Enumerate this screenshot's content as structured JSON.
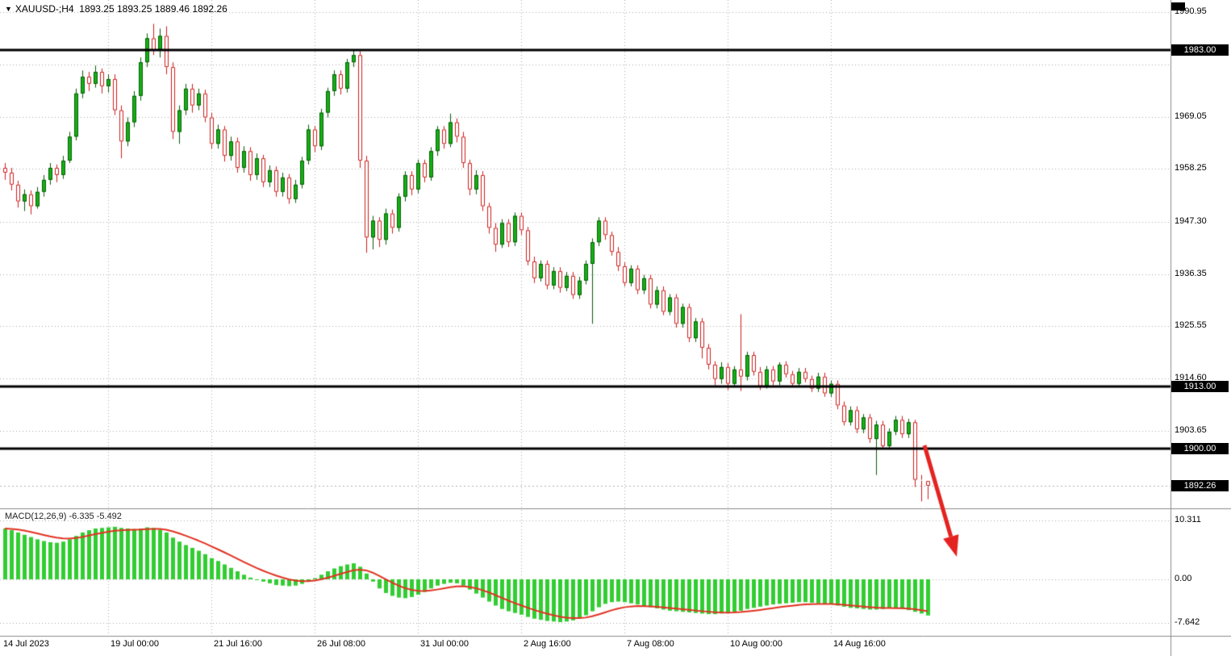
{
  "header": {
    "collapse_icon": "▼",
    "symbol_period": "XAUUSD-;H4",
    "ohlc_text": "1893.25 1893.25 1889.46 1892.26"
  },
  "indicator": {
    "name": "MACD(12,26,9)",
    "values": "-6.335 -5.492"
  },
  "colors": {
    "grid": "#ababab",
    "candle_bull_fill": "#12b212",
    "candle_bull_border": "#0a5a0a",
    "candle_bear_fill": "#ffffff",
    "candle_bear_border": "#cf1d1d",
    "macd_histogram": "#32cd32",
    "macd_signal": "#e23222",
    "level_line": "#000000",
    "current_price_line": "#b4b4b4",
    "arrow": "#e42320"
  },
  "annotation_arrow": {
    "type": "arrow",
    "color": "#e42320",
    "from": [
      1146,
      552
    ],
    "to": [
      1186,
      690
    ]
  },
  "chart_data": {
    "type": "candlestick",
    "symbol": "XAUUSD-",
    "timeframe": "H4",
    "title": "XAUUSD-;H4 1893.25 1893.25 1889.46 1892.26",
    "current_bar_ohlc": {
      "open": 1893.25,
      "high": 1893.25,
      "low": 1889.46,
      "close": 1892.26
    },
    "current_price": {
      "label": "1892.26",
      "value": 1892.26
    },
    "visible_price_range": [
      1887.6,
      1993.5
    ],
    "price_ticks": [
      {
        "label": "1990.95",
        "value": 1990.95
      },
      {
        "label": "1969.05",
        "value": 1969.05
      },
      {
        "label": "1958.25",
        "value": 1958.25
      },
      {
        "label": "1947.30",
        "value": 1947.3
      },
      {
        "label": "1936.35",
        "value": 1936.35
      },
      {
        "label": "1925.55",
        "value": 1925.55
      },
      {
        "label": "1914.60",
        "value": 1914.6
      },
      {
        "label": "1903.65",
        "value": 1903.65
      }
    ],
    "grid_extra_prices": [
      1980.1
    ],
    "horizontal_levels": [
      {
        "label": "1983.00",
        "value": 1983.0
      },
      {
        "label": "1913.00",
        "value": 1913.0
      },
      {
        "label": "1900.00",
        "value": 1900.0
      }
    ],
    "x_axis_labels": [
      {
        "text": "14 Jul 2023",
        "bar": 0
      },
      {
        "text": "19 Jul 00:00",
        "bar": 16
      },
      {
        "text": "21 Jul 16:00",
        "bar": 32
      },
      {
        "text": "26 Jul 08:00",
        "bar": 48
      },
      {
        "text": "31 Jul 00:00",
        "bar": 64
      },
      {
        "text": "2 Aug 16:00",
        "bar": 80
      },
      {
        "text": "7 Aug 08:00",
        "bar": 96
      },
      {
        "text": "10 Aug 00:00",
        "bar": 112
      },
      {
        "text": "14 Aug 16:00",
        "bar": 128
      }
    ],
    "bars_per_label": 16,
    "ohlc": [
      [
        1958.5,
        1959.5,
        1956.0,
        1957.5
      ],
      [
        1957.5,
        1958.5,
        1953.8,
        1955.0
      ],
      [
        1955.0,
        1955.8,
        1950.2,
        1951.5
      ],
      [
        1951.5,
        1954.0,
        1949.5,
        1953.0
      ],
      [
        1953.0,
        1953.8,
        1948.8,
        1950.5
      ],
      [
        1950.5,
        1954.5,
        1950.0,
        1953.5
      ],
      [
        1953.5,
        1957.0,
        1952.5,
        1956.0
      ],
      [
        1956.0,
        1959.5,
        1955.0,
        1958.5
      ],
      [
        1958.5,
        1959.2,
        1955.5,
        1957.0
      ],
      [
        1957.0,
        1961.0,
        1956.2,
        1960.0
      ],
      [
        1960.0,
        1966.0,
        1959.5,
        1965.0
      ],
      [
        1965.0,
        1975.0,
        1964.2,
        1974.0
      ],
      [
        1974.0,
        1978.8,
        1973.0,
        1977.5
      ],
      [
        1977.5,
        1978.5,
        1974.5,
        1976.0
      ],
      [
        1976.0,
        1979.8,
        1975.2,
        1978.5
      ],
      [
        1978.5,
        1979.2,
        1974.0,
        1975.5
      ],
      [
        1975.5,
        1978.0,
        1974.2,
        1977.0
      ],
      [
        1977.0,
        1978.0,
        1969.5,
        1970.5
      ],
      [
        1970.5,
        1971.5,
        1960.5,
        1964.0
      ],
      [
        1964.0,
        1969.0,
        1963.0,
        1968.0
      ],
      [
        1968.0,
        1974.5,
        1967.0,
        1973.5
      ],
      [
        1973.5,
        1981.5,
        1972.5,
        1980.5
      ],
      [
        1980.5,
        1986.5,
        1979.5,
        1985.5
      ],
      [
        1985.5,
        1988.5,
        1982.0,
        1983.0
      ],
      [
        1983.0,
        1987.5,
        1981.5,
        1986.0
      ],
      [
        1986.0,
        1988.0,
        1978.0,
        1979.5
      ],
      [
        1979.5,
        1980.5,
        1964.5,
        1966.0
      ],
      [
        1966.0,
        1971.5,
        1963.5,
        1970.5
      ],
      [
        1970.5,
        1976.0,
        1969.5,
        1975.0
      ],
      [
        1975.0,
        1976.0,
        1970.0,
        1971.5
      ],
      [
        1971.5,
        1975.0,
        1970.5,
        1974.0
      ],
      [
        1974.0,
        1974.8,
        1968.0,
        1969.0
      ],
      [
        1969.0,
        1970.0,
        1962.5,
        1963.5
      ],
      [
        1963.5,
        1967.5,
        1962.5,
        1966.5
      ],
      [
        1966.5,
        1967.2,
        1959.8,
        1961.0
      ],
      [
        1961.0,
        1965.0,
        1960.0,
        1964.0
      ],
      [
        1964.0,
        1964.8,
        1957.5,
        1958.5
      ],
      [
        1958.5,
        1963.0,
        1957.5,
        1962.0
      ],
      [
        1962.0,
        1962.8,
        1955.8,
        1957.0
      ],
      [
        1957.0,
        1961.5,
        1956.0,
        1960.5
      ],
      [
        1960.5,
        1961.2,
        1954.5,
        1955.5
      ],
      [
        1955.5,
        1959.0,
        1954.5,
        1958.0
      ],
      [
        1958.0,
        1958.8,
        1952.5,
        1953.5
      ],
      [
        1953.5,
        1957.5,
        1952.5,
        1956.5
      ],
      [
        1956.5,
        1957.2,
        1951.0,
        1952.0
      ],
      [
        1952.0,
        1956.0,
        1951.2,
        1955.0
      ],
      [
        1955.0,
        1960.8,
        1954.2,
        1960.0
      ],
      [
        1960.0,
        1967.5,
        1959.2,
        1966.5
      ],
      [
        1966.5,
        1967.2,
        1961.8,
        1963.0
      ],
      [
        1963.0,
        1970.8,
        1962.2,
        1970.0
      ],
      [
        1970.0,
        1975.2,
        1969.0,
        1974.5
      ],
      [
        1974.5,
        1978.8,
        1973.5,
        1978.0
      ],
      [
        1978.0,
        1978.8,
        1973.8,
        1975.0
      ],
      [
        1975.0,
        1981.2,
        1974.2,
        1980.5
      ],
      [
        1980.5,
        1983.2,
        1979.5,
        1982.0
      ],
      [
        1982.0,
        1982.8,
        1958.5,
        1960.0
      ],
      [
        1960.0,
        1961.0,
        1940.8,
        1944.0
      ],
      [
        1944.0,
        1948.5,
        1941.5,
        1947.5
      ],
      [
        1947.5,
        1948.2,
        1942.0,
        1943.5
      ],
      [
        1943.5,
        1950.0,
        1942.5,
        1949.0
      ],
      [
        1949.0,
        1949.8,
        1944.8,
        1946.0
      ],
      [
        1946.0,
        1953.2,
        1945.2,
        1952.5
      ],
      [
        1952.5,
        1957.8,
        1951.5,
        1957.0
      ],
      [
        1957.0,
        1957.8,
        1952.8,
        1954.0
      ],
      [
        1954.0,
        1960.2,
        1953.2,
        1959.5
      ],
      [
        1959.5,
        1960.2,
        1955.5,
        1956.5
      ],
      [
        1956.5,
        1962.8,
        1955.8,
        1962.0
      ],
      [
        1962.0,
        1967.2,
        1961.0,
        1966.5
      ],
      [
        1966.5,
        1967.2,
        1962.5,
        1963.5
      ],
      [
        1963.5,
        1969.8,
        1962.8,
        1968.0
      ],
      [
        1968.0,
        1968.8,
        1963.8,
        1965.0
      ],
      [
        1965.0,
        1966.0,
        1958.5,
        1959.5
      ],
      [
        1959.5,
        1960.2,
        1952.8,
        1954.0
      ],
      [
        1954.0,
        1958.0,
        1953.0,
        1957.0
      ],
      [
        1957.0,
        1957.8,
        1949.5,
        1950.5
      ],
      [
        1950.5,
        1951.2,
        1944.8,
        1946.0
      ],
      [
        1946.0,
        1947.0,
        1941.0,
        1942.5
      ],
      [
        1942.5,
        1947.8,
        1941.8,
        1947.0
      ],
      [
        1947.0,
        1947.8,
        1942.0,
        1943.0
      ],
      [
        1943.0,
        1949.2,
        1942.2,
        1948.5
      ],
      [
        1948.5,
        1949.2,
        1944.5,
        1945.5
      ],
      [
        1945.5,
        1946.2,
        1938.2,
        1939.0
      ],
      [
        1939.0,
        1940.0,
        1934.5,
        1935.5
      ],
      [
        1935.5,
        1939.2,
        1934.8,
        1938.5
      ],
      [
        1938.5,
        1939.2,
        1933.2,
        1934.0
      ],
      [
        1934.0,
        1937.8,
        1933.2,
        1937.0
      ],
      [
        1937.0,
        1937.8,
        1932.5,
        1933.5
      ],
      [
        1933.5,
        1936.8,
        1932.8,
        1936.0
      ],
      [
        1936.0,
        1936.8,
        1931.2,
        1932.0
      ],
      [
        1932.0,
        1935.8,
        1931.2,
        1935.0
      ],
      [
        1935.0,
        1939.2,
        1934.2,
        1938.5
      ],
      [
        1938.5,
        1943.8,
        1926.0,
        1943.0
      ],
      [
        1943.0,
        1948.2,
        1942.2,
        1947.5
      ],
      [
        1947.5,
        1948.2,
        1943.5,
        1944.5
      ],
      [
        1944.5,
        1945.2,
        1940.2,
        1941.0
      ],
      [
        1941.0,
        1942.0,
        1937.0,
        1938.0
      ],
      [
        1938.0,
        1938.8,
        1933.8,
        1934.5
      ],
      [
        1934.5,
        1938.2,
        1933.8,
        1937.5
      ],
      [
        1937.5,
        1938.2,
        1932.2,
        1933.0
      ],
      [
        1933.0,
        1936.2,
        1932.2,
        1935.5
      ],
      [
        1935.5,
        1936.2,
        1929.2,
        1930.0
      ],
      [
        1930.0,
        1933.8,
        1929.2,
        1933.0
      ],
      [
        1933.0,
        1933.8,
        1927.8,
        1928.5
      ],
      [
        1928.5,
        1932.2,
        1927.8,
        1931.5
      ],
      [
        1931.5,
        1932.2,
        1925.2,
        1926.0
      ],
      [
        1926.0,
        1930.2,
        1925.2,
        1929.5
      ],
      [
        1929.5,
        1930.2,
        1922.2,
        1923.0
      ],
      [
        1923.0,
        1927.2,
        1922.2,
        1926.5
      ],
      [
        1926.5,
        1927.2,
        1918.8,
        1921.0
      ],
      [
        1921.0,
        1921.8,
        1916.5,
        1917.5
      ],
      [
        1917.5,
        1918.2,
        1913.2,
        1914.5
      ],
      [
        1914.5,
        1918.0,
        1913.5,
        1917.0
      ],
      [
        1917.0,
        1917.8,
        1912.2,
        1913.5
      ],
      [
        1913.5,
        1917.2,
        1912.8,
        1916.5
      ],
      [
        1916.5,
        1928.0,
        1912.0,
        1915.0
      ],
      [
        1915.0,
        1920.2,
        1914.2,
        1919.5
      ],
      [
        1919.5,
        1920.2,
        1915.2,
        1916.0
      ],
      [
        1916.0,
        1917.0,
        1912.2,
        1913.0
      ],
      [
        1913.0,
        1917.2,
        1912.5,
        1916.5
      ],
      [
        1916.5,
        1917.2,
        1913.2,
        1914.0
      ],
      [
        1914.0,
        1918.0,
        1913.2,
        1917.5
      ],
      [
        1917.5,
        1918.2,
        1914.8,
        1915.5
      ],
      [
        1915.5,
        1916.2,
        1912.8,
        1913.5
      ],
      [
        1913.5,
        1916.8,
        1912.8,
        1916.0
      ],
      [
        1916.0,
        1916.8,
        1913.8,
        1914.5
      ],
      [
        1914.5,
        1915.2,
        1911.8,
        1912.5
      ],
      [
        1912.5,
        1915.8,
        1911.8,
        1915.0
      ],
      [
        1915.0,
        1915.8,
        1910.8,
        1911.5
      ],
      [
        1911.5,
        1914.2,
        1910.8,
        1913.5
      ],
      [
        1913.5,
        1914.2,
        1908.2,
        1909.0
      ],
      [
        1909.0,
        1909.8,
        1904.8,
        1905.5
      ],
      [
        1905.5,
        1908.8,
        1904.8,
        1908.0
      ],
      [
        1908.0,
        1908.8,
        1903.2,
        1904.0
      ],
      [
        1904.0,
        1907.2,
        1903.2,
        1906.5
      ],
      [
        1906.5,
        1907.2,
        1901.2,
        1902.0
      ],
      [
        1902.0,
        1905.8,
        1894.5,
        1905.0
      ],
      [
        1905.0,
        1905.8,
        1899.8,
        1900.5
      ],
      [
        1900.5,
        1904.2,
        1899.8,
        1903.5
      ],
      [
        1903.5,
        1906.8,
        1902.8,
        1906.0
      ],
      [
        1906.0,
        1906.8,
        1902.2,
        1903.0
      ],
      [
        1903.0,
        1906.2,
        1902.2,
        1905.5
      ],
      [
        1905.5,
        1906.0,
        1892.0,
        1893.5
      ],
      [
        1893.5,
        1894.5,
        1889.0,
        1893.3
      ],
      [
        1893.25,
        1893.25,
        1889.46,
        1892.26
      ]
    ],
    "macd": {
      "name": "MACD(12,26,9)",
      "macd_value": -6.335,
      "signal_value": -5.492,
      "ticks": [
        {
          "label": "10.311",
          "value": 10.311
        },
        {
          "label": "0.00",
          "value": 0
        },
        {
          "label": "-7.642",
          "value": -7.642
        }
      ],
      "visible_range": [
        -9.9,
        12.2
      ],
      "histogram": [
        8.9,
        8.6,
        8.2,
        7.8,
        7.4,
        7.0,
        6.7,
        6.5,
        6.4,
        6.6,
        7.0,
        7.6,
        8.2,
        8.6,
        8.9,
        9.0,
        9.1,
        9.2,
        9.0,
        8.9,
        8.8,
        8.9,
        9.1,
        9.0,
        8.7,
        8.2,
        7.3,
        6.6,
        6.0,
        5.5,
        5.0,
        4.4,
        3.7,
        3.2,
        2.6,
        2.0,
        1.4,
        0.8,
        0.3,
        -0.1,
        -0.4,
        -0.7,
        -1.0,
        -1.1,
        -1.2,
        -1.1,
        -0.8,
        -0.3,
        0.2,
        0.8,
        1.4,
        1.9,
        2.3,
        2.6,
        2.8,
        2.2,
        1.0,
        -0.4,
        -1.6,
        -2.4,
        -2.9,
        -3.2,
        -3.3,
        -3.1,
        -2.7,
        -2.2,
        -1.6,
        -1.1,
        -0.8,
        -0.6,
        -0.7,
        -1.1,
        -1.8,
        -2.5,
        -3.2,
        -3.9,
        -4.6,
        -5.2,
        -5.6,
        -5.9,
        -6.2,
        -6.6,
        -6.9,
        -7.1,
        -7.3,
        -7.4,
        -7.5,
        -7.4,
        -7.2,
        -6.8,
        -6.3,
        -5.6,
        -4.9,
        -4.3,
        -4.0,
        -3.9,
        -4.0,
        -4.2,
        -4.4,
        -4.7,
        -4.9,
        -5.1,
        -5.3,
        -5.5,
        -5.6,
        -5.7,
        -5.8,
        -5.9,
        -6.0,
        -6.1,
        -6.1,
        -6.0,
        -5.9,
        -5.7,
        -5.5,
        -5.2,
        -5.0,
        -4.8,
        -4.6,
        -4.4,
        -4.3,
        -4.2,
        -4.1,
        -4.0,
        -4.0,
        -4.1,
        -4.2,
        -4.3,
        -4.4,
        -4.6,
        -4.8,
        -5.0,
        -5.1,
        -5.2,
        -5.3,
        -5.3,
        -5.2,
        -5.1,
        -5.1,
        -5.2,
        -5.4,
        -5.7,
        -6.0,
        -6.335
      ]
    }
  }
}
